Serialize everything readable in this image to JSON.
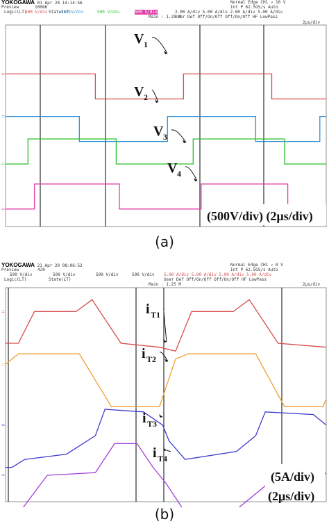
{
  "figure": {
    "panels": [
      {
        "caption": "(a)",
        "header": {
          "brand": "YOKOGAWA",
          "date": "01 Apr 20 14:14:56",
          "record": "10086",
          "preview": "Preview",
          "ch_scales": [
            "500 V/div",
            "500 V/div",
            "500 V/div",
            "500 V/div"
          ],
          "math": [
            "Logic(LT)",
            "State(LT)"
          ],
          "main": "Main : 1.25 M",
          "right_line1": "Normal      Edge CH1 ↗ 10 V",
          "right_line2": "Int P 62.5GS/s  Auto",
          "right_line3": "2.00 A/div  5.00 A/div  2.00 A/div  5.00 A/div",
          "right_line4": "User Def  Off/On/Off  Off/On/Off  HF LowPass",
          "timebase": "2μs/div"
        },
        "scale_note": "(500V/div) (2μs/div)"
      },
      {
        "caption": "(b)",
        "header": {
          "brand": "YOKOGAWA",
          "date": "21 Apr 20 08:06:52",
          "record": "420",
          "preview": "Preview",
          "ch_scales": [
            "500 V/div",
            "500 V/div",
            "500 V/div",
            "500 V/div"
          ],
          "math": [
            "Logic(LT)",
            "State(LT)"
          ],
          "main": "Main : 1.25 M",
          "right_line1": "Normal      Edge CH1 ↗ 0 V",
          "right_line2": "Int P 62.5GS/s  Auto",
          "right_line3": "5.00 A/div  5.00 A/div  5.00 A/div  5.00 A/div",
          "right_line4": "User Def  Off/On/Off  Off/On/Off  HF LowPass",
          "timebase": "2μs/div"
        },
        "scale_note_1": "(5A/div)",
        "scale_note_2": "(2μs/div)"
      }
    ]
  },
  "chart_data": [
    {
      "type": "line",
      "title": "",
      "xlabel": "",
      "ylabel": "",
      "x_unit": "μs",
      "y_unit": "V",
      "x_range": [
        0,
        20
      ],
      "y_scale": "500 V/div",
      "time_scale": "2 μs/div",
      "series": [
        {
          "name": "V1",
          "color": "#d84a4a",
          "offset_div": 6.1,
          "points": [
            [
              0,
              0
            ],
            [
              5.6,
              0
            ],
            [
              5.6,
              -1
            ],
            [
              11.1,
              -1
            ],
            [
              11.1,
              0
            ],
            [
              16.6,
              0
            ],
            [
              16.6,
              -1
            ],
            [
              20,
              -1
            ]
          ]
        },
        {
          "name": "V2",
          "color": "#2f8fd6",
          "offset_div": 4.4,
          "points": [
            [
              0,
              0
            ],
            [
              4.6,
              0
            ],
            [
              4.6,
              -1
            ],
            [
              10.1,
              -1
            ],
            [
              10.1,
              0
            ],
            [
              15.6,
              0
            ],
            [
              15.6,
              -1
            ],
            [
              19.6,
              -1
            ],
            [
              19.6,
              0
            ],
            [
              20,
              0
            ]
          ]
        },
        {
          "name": "V3",
          "color": "#2bbf2b",
          "offset_div": 2.5,
          "points": [
            [
              0,
              0
            ],
            [
              1.4,
              0
            ],
            [
              1.4,
              1
            ],
            [
              6.9,
              1
            ],
            [
              6.9,
              0
            ],
            [
              11.7,
              0
            ],
            [
              11.7,
              1
            ],
            [
              17.4,
              1
            ],
            [
              17.4,
              0
            ],
            [
              20,
              0
            ]
          ]
        },
        {
          "name": "V4",
          "color": "#e040a8",
          "offset_div": 0.7,
          "points": [
            [
              0,
              0
            ],
            [
              1.8,
              0
            ],
            [
              1.8,
              1
            ],
            [
              7.1,
              1
            ],
            [
              7.1,
              0
            ],
            [
              12.2,
              0
            ],
            [
              12.2,
              1
            ],
            [
              17.6,
              1
            ],
            [
              17.6,
              0
            ],
            [
              20,
              0
            ]
          ]
        }
      ],
      "labels": [
        "V1",
        "V2",
        "V3",
        "V4"
      ]
    },
    {
      "type": "line",
      "title": "",
      "xlabel": "",
      "ylabel": "",
      "x_unit": "μs",
      "y_unit": "A",
      "x_range": [
        0,
        20
      ],
      "y_scale": "5 A/div",
      "time_scale": "2 μs/div",
      "series": [
        {
          "name": "iT1",
          "color": "#d84a4a",
          "offset_div": 7.2,
          "points": [
            [
              0,
              -1.2
            ],
            [
              0.8,
              -1.2
            ],
            [
              1.8,
              0
            ],
            [
              4.4,
              0
            ],
            [
              5.4,
              0.45
            ],
            [
              7.2,
              -1.2
            ],
            [
              9.6,
              -1.35
            ],
            [
              10.6,
              -1.5
            ],
            [
              11.6,
              0
            ],
            [
              14.2,
              0
            ],
            [
              15.2,
              0.45
            ],
            [
              17.0,
              -1.2
            ],
            [
              20,
              -1.35
            ]
          ]
        },
        {
          "name": "iT2",
          "color": "#f0a030",
          "offset_div": 5.2,
          "points": [
            [
              0,
              0
            ],
            [
              0.8,
              0.4
            ],
            [
              2.8,
              0.4
            ],
            [
              4.6,
              0.4
            ],
            [
              6.6,
              -1.6
            ],
            [
              9.6,
              -1.6
            ],
            [
              10.6,
              0.2
            ],
            [
              11.4,
              0.4
            ],
            [
              15.6,
              0.4
            ],
            [
              17.4,
              -1.6
            ],
            [
              19.8,
              -1.6
            ],
            [
              20,
              -1.3
            ]
          ]
        },
        {
          "name": "iT3",
          "color": "#3a3ad0",
          "offset_div": 2.9,
          "points": [
            [
              0,
              -1.6
            ],
            [
              0.4,
              -1.6
            ],
            [
              1.2,
              -1.3
            ],
            [
              3.8,
              -1.1
            ],
            [
              5.6,
              -0.4
            ],
            [
              6.2,
              0.6
            ],
            [
              8.6,
              0.5
            ],
            [
              9.8,
              0
            ],
            [
              10.2,
              -0.6
            ],
            [
              11.2,
              -1.3
            ],
            [
              14.4,
              -1.0
            ],
            [
              15.6,
              -0.4
            ],
            [
              16.2,
              0.5
            ],
            [
              19.2,
              0.4
            ],
            [
              20,
              0
            ]
          ]
        },
        {
          "name": "iT4",
          "color": "#a040d8",
          "offset_div": 1.0,
          "points": [
            [
              0,
              -1.5
            ],
            [
              1.0,
              -1.3
            ],
            [
              2.6,
              0
            ],
            [
              5.6,
              0.1
            ],
            [
              6.8,
              1.2
            ],
            [
              8.2,
              1.2
            ],
            [
              9.2,
              0.3
            ],
            [
              10.0,
              -0.3
            ],
            [
              11.2,
              -1.4
            ],
            [
              14.2,
              -1.4
            ],
            [
              16.8,
              -0.1
            ],
            [
              18.6,
              0
            ],
            [
              19.8,
              0
            ],
            [
              20,
              0.1
            ]
          ]
        }
      ],
      "labels": [
        "iT1",
        "iT2",
        "iT3",
        "iT4"
      ]
    }
  ]
}
